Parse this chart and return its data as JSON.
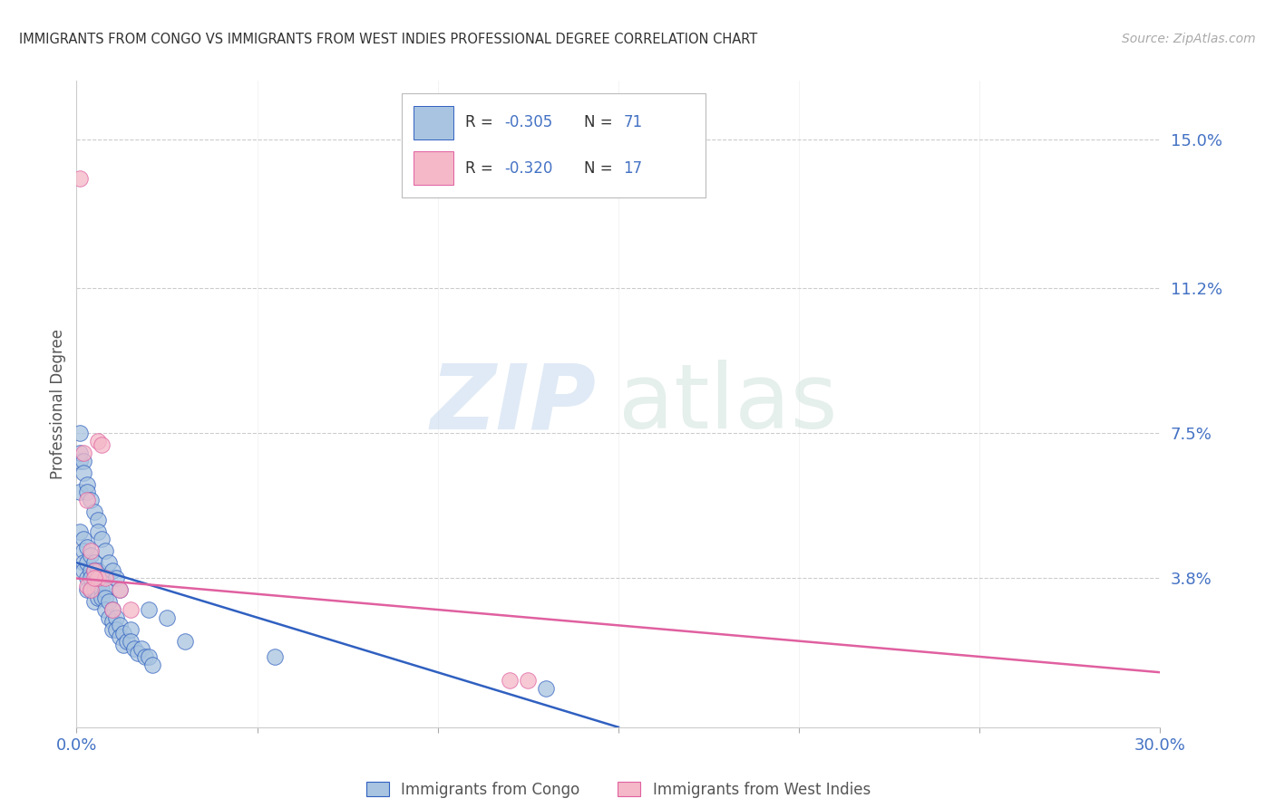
{
  "title": "IMMIGRANTS FROM CONGO VS IMMIGRANTS FROM WEST INDIES PROFESSIONAL DEGREE CORRELATION CHART",
  "source": "Source: ZipAtlas.com",
  "ylabel": "Professional Degree",
  "x_min": 0.0,
  "x_max": 0.3,
  "y_min": 0.0,
  "y_max": 0.165,
  "y_ticks": [
    0.038,
    0.075,
    0.112,
    0.15
  ],
  "y_tick_labels": [
    "3.8%",
    "7.5%",
    "11.2%",
    "15.0%"
  ],
  "color_congo": "#a8c4e0",
  "color_west_indies": "#f4b8c8",
  "line_color_congo": "#3060c0",
  "line_color_west_indies": "#e060a0",
  "R_congo": -0.305,
  "N_congo": 71,
  "R_west_indies": -0.32,
  "N_west_indies": 17,
  "legend_label_congo": "Immigrants from Congo",
  "legend_label_west_indies": "Immigrants from West Indies",
  "watermark_zip": "ZIP",
  "watermark_atlas": "atlas",
  "background_color": "#ffffff",
  "congo_points_x": [
    0.001,
    0.001,
    0.001,
    0.002,
    0.002,
    0.002,
    0.002,
    0.003,
    0.003,
    0.003,
    0.003,
    0.004,
    0.004,
    0.004,
    0.004,
    0.005,
    0.005,
    0.005,
    0.005,
    0.005,
    0.006,
    0.006,
    0.006,
    0.006,
    0.007,
    0.007,
    0.007,
    0.008,
    0.008,
    0.008,
    0.009,
    0.009,
    0.01,
    0.01,
    0.01,
    0.011,
    0.011,
    0.012,
    0.012,
    0.013,
    0.013,
    0.014,
    0.015,
    0.015,
    0.016,
    0.017,
    0.018,
    0.019,
    0.02,
    0.021,
    0.001,
    0.001,
    0.002,
    0.002,
    0.003,
    0.003,
    0.004,
    0.005,
    0.006,
    0.006,
    0.007,
    0.008,
    0.009,
    0.01,
    0.011,
    0.012,
    0.02,
    0.025,
    0.03,
    0.055,
    0.13
  ],
  "congo_points_y": [
    0.06,
    0.068,
    0.05,
    0.048,
    0.045,
    0.042,
    0.04,
    0.046,
    0.042,
    0.038,
    0.035,
    0.044,
    0.04,
    0.038,
    0.035,
    0.042,
    0.04,
    0.037,
    0.035,
    0.032,
    0.04,
    0.038,
    0.036,
    0.033,
    0.038,
    0.035,
    0.033,
    0.035,
    0.033,
    0.03,
    0.032,
    0.028,
    0.03,
    0.027,
    0.025,
    0.028,
    0.025,
    0.026,
    0.023,
    0.024,
    0.021,
    0.022,
    0.025,
    0.022,
    0.02,
    0.019,
    0.02,
    0.018,
    0.018,
    0.016,
    0.075,
    0.07,
    0.068,
    0.065,
    0.062,
    0.06,
    0.058,
    0.055,
    0.053,
    0.05,
    0.048,
    0.045,
    0.042,
    0.04,
    0.038,
    0.035,
    0.03,
    0.028,
    0.022,
    0.018,
    0.01
  ],
  "west_indies_points_x": [
    0.001,
    0.002,
    0.003,
    0.003,
    0.004,
    0.004,
    0.005,
    0.006,
    0.008,
    0.01,
    0.012,
    0.015,
    0.12,
    0.125,
    0.006,
    0.005,
    0.007
  ],
  "west_indies_points_y": [
    0.14,
    0.07,
    0.058,
    0.036,
    0.045,
    0.035,
    0.04,
    0.038,
    0.038,
    0.03,
    0.035,
    0.03,
    0.012,
    0.012,
    0.073,
    0.038,
    0.072
  ],
  "congo_line_x": [
    0.0,
    0.15
  ],
  "congo_line_y": [
    0.042,
    0.0
  ],
  "wi_line_x": [
    0.0,
    0.3
  ],
  "wi_line_y": [
    0.038,
    0.014
  ]
}
